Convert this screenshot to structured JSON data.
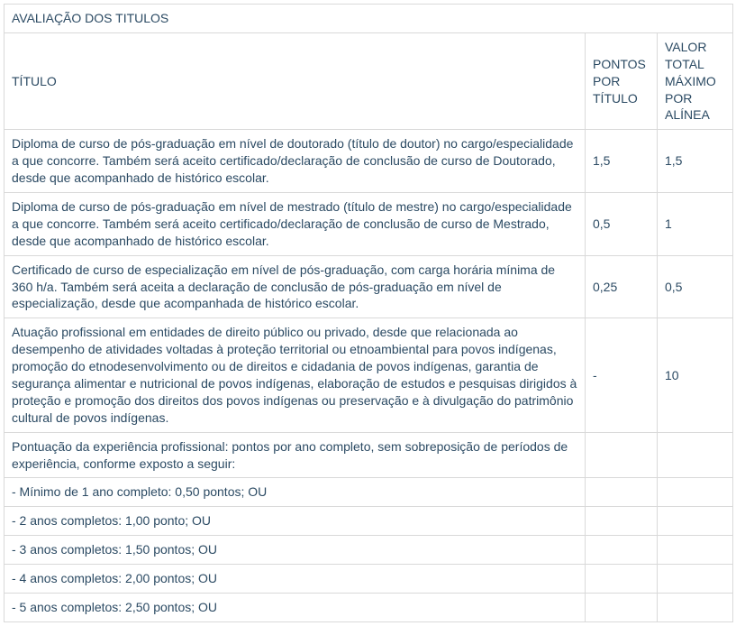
{
  "table": {
    "title": "AVALIAÇÃO DOS TITULOS",
    "colors": {
      "text": "#2b4a63",
      "border": "#d9d9d9",
      "background": "#ffffff"
    },
    "fontsize": 14,
    "headers": {
      "col1": "TÍTULO",
      "col2": "PONTOS POR TÍTULO",
      "col3": "VALOR TOTAL MÁXIMO POR ALÍNEA"
    },
    "rows": [
      {
        "titulo": "Diploma de curso de pós-graduação em nível de doutorado (título de doutor) no cargo/especialidade a que concorre. Também será aceito certificado/declaração de conclusão de curso de Doutorado, desde que acompanhado de histórico escolar.",
        "pontos": "1,5",
        "valor": "1,5"
      },
      {
        "titulo": "Diploma de curso de pós-graduação em nível de mestrado (título de mestre) no cargo/especialidade a que concorre. Também será aceito certificado/declaração de conclusão de curso de Mestrado, desde que acompanhado de histórico escolar.",
        "pontos": "0,5",
        "valor": "1"
      },
      {
        "titulo": "Certificado de curso de especialização em nível de pós-graduação, com carga horária mínima de 360 h/a. Também será aceita a declaração de conclusão de pós-graduação em nível de especialização, desde que acompanhada de histórico escolar.",
        "pontos": "0,25",
        "valor": "0,5"
      },
      {
        "titulo": "Atuação profissional em entidades de direito público ou privado, desde que relacionada ao desempenho de atividades voltadas à proteção territorial ou etnoambiental para povos indígenas, promoção do etnodesenvolvimento ou de direitos e cidadania de povos indígenas, garantia de segurança alimentar e nutricional de povos indígenas, elaboração de estudos e pesquisas dirigidos à proteção e promoção dos direitos dos povos indígenas ou preservação e à divulgação do patrimônio cultural de povos indígenas.",
        "pontos": "-",
        "valor": "10"
      },
      {
        "titulo": "Pontuação da experiência profissional: pontos por ano completo, sem sobreposição de períodos de experiência, conforme exposto a seguir:",
        "pontos": "",
        "valor": ""
      },
      {
        "titulo": "- Mínimo de 1 ano completo: 0,50 pontos; OU",
        "pontos": "",
        "valor": ""
      },
      {
        "titulo": "- 2 anos completos: 1,00 ponto; OU",
        "pontos": "",
        "valor": ""
      },
      {
        "titulo": "- 3 anos completos: 1,50 pontos; OU",
        "pontos": "",
        "valor": ""
      },
      {
        "titulo": "- 4 anos completos: 2,00 pontos; OU",
        "pontos": "",
        "valor": ""
      },
      {
        "titulo": "- 5 anos completos: 2,50 pontos; OU",
        "pontos": "",
        "valor": ""
      }
    ]
  }
}
